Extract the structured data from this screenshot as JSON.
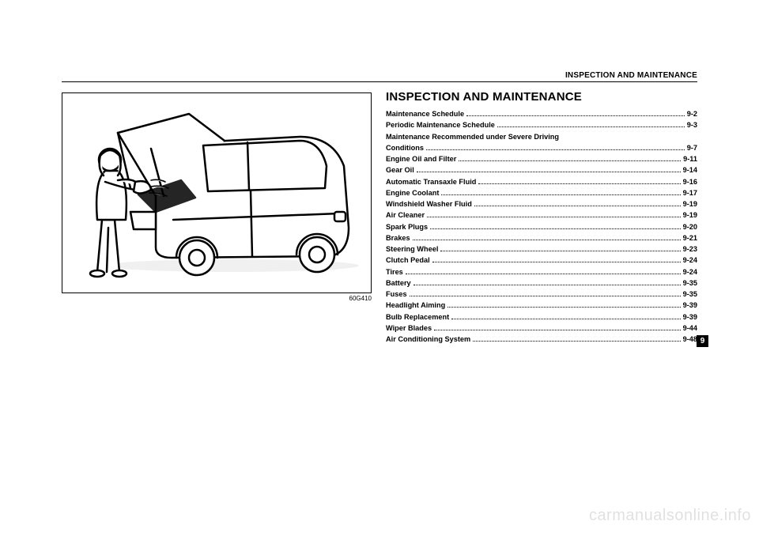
{
  "section_header": "INSPECTION AND MAINTENANCE",
  "title": "INSPECTION AND MAINTENANCE",
  "image_caption": "60G410",
  "page_tab": "9",
  "watermark": "carmanualsonline.info",
  "toc": [
    {
      "label": "Maintenance Schedule",
      "page": "9-2"
    },
    {
      "label": "Periodic Maintenance Schedule",
      "page": "9-3"
    },
    {
      "label": "Maintenance Recommended under Severe Driving",
      "page": null
    },
    {
      "label": "Conditions",
      "page": "9-7"
    },
    {
      "label": "Engine Oil and Filter",
      "page": "9-11"
    },
    {
      "label": "Gear Oil",
      "page": "9-14"
    },
    {
      "label": "Automatic Transaxle Fluid",
      "page": "9-16"
    },
    {
      "label": "Engine Coolant",
      "page": "9-17"
    },
    {
      "label": "Windshield Washer Fluid",
      "page": "9-19"
    },
    {
      "label": "Air Cleaner",
      "page": "9-19"
    },
    {
      "label": "Spark Plugs",
      "page": "9-20"
    },
    {
      "label": "Brakes",
      "page": "9-21"
    },
    {
      "label": "Steering Wheel",
      "page": "9-23"
    },
    {
      "label": "Clutch Pedal",
      "page": "9-24"
    },
    {
      "label": "Tires",
      "page": "9-24"
    },
    {
      "label": "Battery",
      "page": "9-35"
    },
    {
      "label": "Fuses",
      "page": "9-35"
    },
    {
      "label": "Headlight Aiming",
      "page": "9-39"
    },
    {
      "label": "Bulb Replacement",
      "page": "9-39"
    },
    {
      "label": "Wiper Blades",
      "page": "9-44"
    },
    {
      "label": "Air Conditioning System",
      "page": "9-48"
    }
  ],
  "illustration": {
    "type": "line-drawing",
    "background_color": "#ffffff",
    "stroke_color": "#000000",
    "stroke_width": 2.5,
    "description": "person-with-rag-inspecting-open-hood-of-small-van"
  },
  "colors": {
    "text": "#000000",
    "background": "#ffffff",
    "tab_bg": "#000000",
    "tab_fg": "#ffffff",
    "watermark": "rgba(0,0,0,0.12)"
  }
}
